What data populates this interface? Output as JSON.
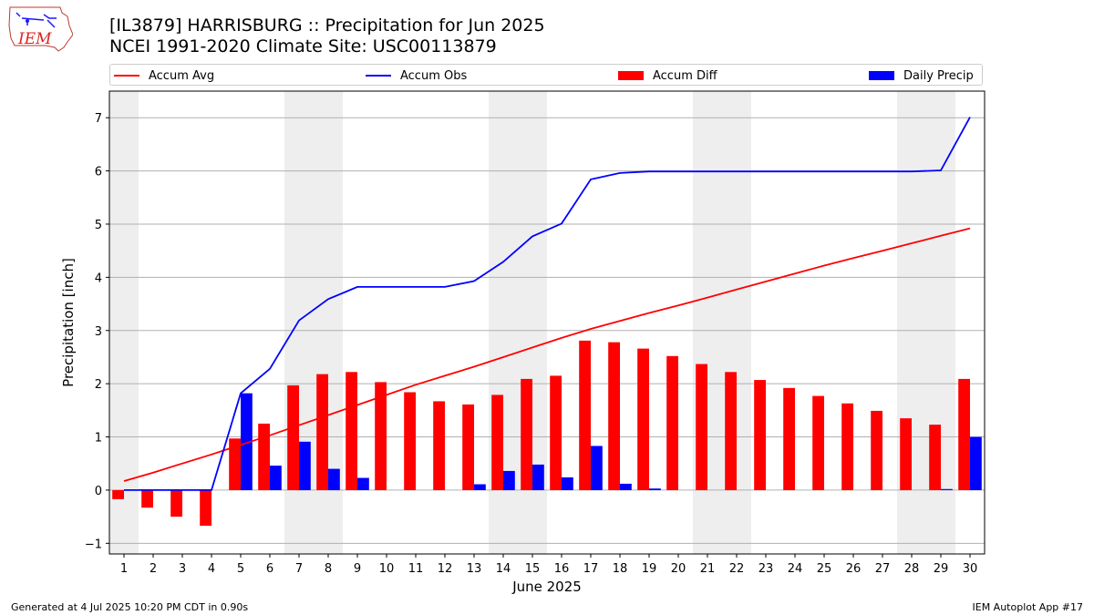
{
  "header": {
    "title_line1": "[IL3879] HARRISBURG :: Precipitation for Jun 2025",
    "title_line2": "NCEI 1991-2020 Climate Site: USC00113879"
  },
  "logo": {
    "text": "IEM"
  },
  "footer": {
    "left": "Generated at 4 Jul 2025 10:20 PM CDT in 0.90s",
    "right": "IEM Autoplot App #17"
  },
  "legend": [
    {
      "label": "Accum Avg",
      "kind": "line",
      "color": "#ff0000"
    },
    {
      "label": "Accum Obs",
      "kind": "line",
      "color": "#0000ff"
    },
    {
      "label": "Accum Diff",
      "kind": "bar",
      "color": "#ff0000"
    },
    {
      "label": "Daily Precip",
      "kind": "bar",
      "color": "#0000ff"
    }
  ],
  "chart_data": {
    "type": "bar",
    "xlabel": "June 2025",
    "ylabel": "Precipitation [inch]",
    "ylim": [
      -1.2,
      7.5
    ],
    "yticks": [
      -1,
      0,
      1,
      2,
      3,
      4,
      5,
      6,
      7
    ],
    "ytick_labels": [
      "−1",
      "0",
      "1",
      "2",
      "3",
      "4",
      "5",
      "6",
      "7"
    ],
    "grid": "horizontal",
    "legend_position": "top",
    "categories": [
      "1",
      "2",
      "3",
      "4",
      "5",
      "6",
      "7",
      "8",
      "9",
      "10",
      "11",
      "12",
      "13",
      "14",
      "15",
      "16",
      "17",
      "18",
      "19",
      "20",
      "21",
      "22",
      "23",
      "24",
      "25",
      "26",
      "27",
      "28",
      "29",
      "30"
    ],
    "weekend_shading_days": [
      1,
      7,
      8,
      14,
      15,
      21,
      22,
      28,
      29
    ],
    "series": [
      {
        "name": "Accum Avg",
        "type": "line",
        "color": "#ff0000",
        "values": [
          0.17,
          0.33,
          0.5,
          0.67,
          0.85,
          1.03,
          1.22,
          1.41,
          1.6,
          1.79,
          1.98,
          2.15,
          2.32,
          2.5,
          2.68,
          2.86,
          3.03,
          3.18,
          3.33,
          3.47,
          3.62,
          3.77,
          3.92,
          4.07,
          4.22,
          4.36,
          4.5,
          4.64,
          4.78,
          4.92
        ]
      },
      {
        "name": "Accum Obs",
        "type": "line",
        "color": "#0000ff",
        "values": [
          0.0,
          0.0,
          0.0,
          0.0,
          1.82,
          2.28,
          3.19,
          3.59,
          3.82,
          3.82,
          3.82,
          3.82,
          3.93,
          4.29,
          4.77,
          5.01,
          5.84,
          5.96,
          5.99,
          5.99,
          5.99,
          5.99,
          5.99,
          5.99,
          5.99,
          5.99,
          5.99,
          5.99,
          6.01,
          7.01
        ]
      },
      {
        "name": "Accum Diff",
        "type": "bar",
        "color": "#ff0000",
        "values": [
          -0.17,
          -0.33,
          -0.5,
          -0.67,
          0.97,
          1.25,
          1.97,
          2.18,
          2.22,
          2.03,
          1.84,
          1.67,
          1.61,
          1.79,
          2.09,
          2.15,
          2.81,
          2.78,
          2.66,
          2.52,
          2.37,
          2.22,
          2.07,
          1.92,
          1.77,
          1.63,
          1.49,
          1.35,
          1.23,
          2.09
        ]
      },
      {
        "name": "Daily Precip",
        "type": "bar",
        "color": "#0000ff",
        "values": [
          0,
          0,
          0,
          0,
          1.82,
          0.46,
          0.91,
          0.4,
          0.23,
          0,
          0,
          0,
          0.11,
          0.36,
          0.48,
          0.24,
          0.83,
          0.12,
          0.03,
          0,
          0,
          0,
          0,
          0,
          0,
          0,
          0,
          0,
          0.02,
          1.0
        ]
      }
    ]
  }
}
